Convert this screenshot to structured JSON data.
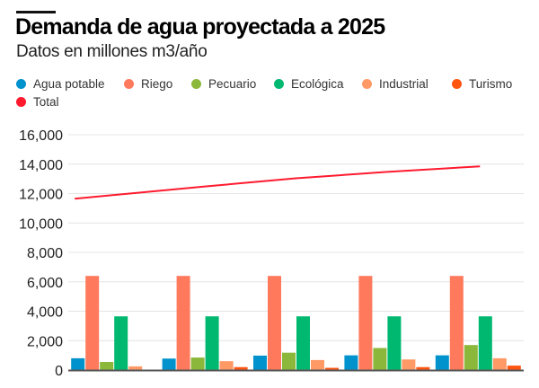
{
  "header": {
    "title": "Demanda de agua proyectada a 2025",
    "subtitle": "Datos en millones m3/año"
  },
  "legend": [
    {
      "label": "Agua potable",
      "color": "#0092CC"
    },
    {
      "label": "Riego",
      "color": "#FF7A5C"
    },
    {
      "label": "Pecuario",
      "color": "#8BB83A"
    },
    {
      "label": "Ecológica",
      "color": "#00B870"
    },
    {
      "label": "Industrial",
      "color": "#FF9966"
    },
    {
      "label": "Turismo",
      "color": "#FF5511"
    },
    {
      "label": "Total",
      "color": "#FF1A2E"
    }
  ],
  "chart_data": {
    "type": "bar",
    "title": "Demanda de agua proyectada a 2025",
    "subtitle": "Datos en millones m3/año",
    "xlabel": "",
    "ylabel": "",
    "categories": [
      "",
      "",
      "",
      "",
      ""
    ],
    "ylim": [
      0,
      16000
    ],
    "yticks": [
      0,
      2000,
      4000,
      6000,
      8000,
      10000,
      12000,
      14000,
      16000
    ],
    "ytick_labels": [
      "0",
      "2,000",
      "4,000",
      "6,000",
      "8,000",
      "10,000",
      "12,000",
      "14,000",
      "16,000"
    ],
    "grid": true,
    "legend_position": "top-left",
    "series": [
      {
        "name": "Agua potable",
        "type": "bar",
        "color": "#0092CC",
        "values": [
          800,
          780,
          980,
          1000,
          1000
        ]
      },
      {
        "name": "Riego",
        "type": "bar",
        "color": "#FF7A5C",
        "values": [
          6400,
          6400,
          6400,
          6400,
          6400
        ]
      },
      {
        "name": "Pecuario",
        "type": "bar",
        "color": "#8BB83A",
        "values": [
          550,
          850,
          1180,
          1500,
          1700
        ]
      },
      {
        "name": "Ecológica",
        "type": "bar",
        "color": "#00B870",
        "values": [
          3650,
          3650,
          3650,
          3650,
          3650
        ]
      },
      {
        "name": "Industrial",
        "type": "bar",
        "color": "#FF9966",
        "values": [
          250,
          600,
          680,
          720,
          800
        ]
      },
      {
        "name": "Turismo",
        "type": "bar",
        "color": "#FF5511",
        "values": [
          0,
          200,
          150,
          200,
          300
        ]
      },
      {
        "name": "Total",
        "type": "line",
        "color": "#FF1A2E",
        "values": [
          11650,
          12480,
          13040,
          13470,
          13850
        ]
      }
    ]
  }
}
